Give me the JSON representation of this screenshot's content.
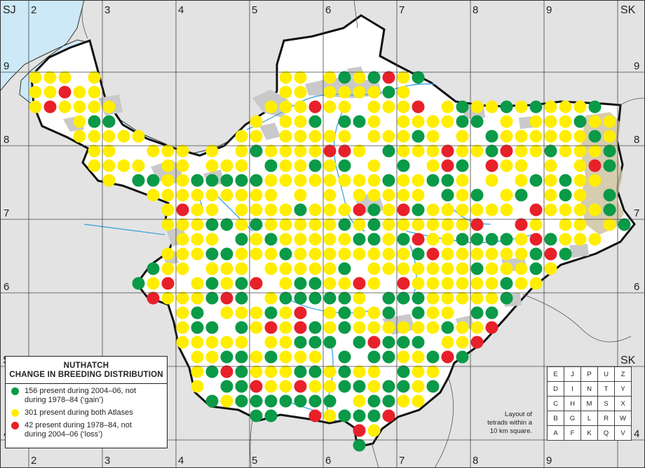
{
  "corners": {
    "top_left": "SJ",
    "top_right": "SK",
    "bottom_left": "SJ",
    "bottom_right": "SK"
  },
  "easting_labels": [
    "2",
    "3",
    "4",
    "5",
    "6",
    "7",
    "8",
    "9"
  ],
  "northing_labels": [
    "9",
    "8",
    "7",
    "6",
    "5",
    "4"
  ],
  "legend": {
    "title_line1": "NUTHATCH",
    "title_line2": "CHANGE IN BREEDING DISTRIBUTION",
    "items": [
      {
        "line1": "156 present during 2004–06, not",
        "line2": "during 1978–84 (‘gain’)",
        "color": "#0a9a48"
      },
      {
        "line1": "301 present during both Atlases",
        "line2": "",
        "color": "#ffee00"
      },
      {
        "line1": "42 present during 1978–84, not",
        "line2": "during 2004–06 (‘loss’)",
        "color": "#e8202a"
      }
    ]
  },
  "tetrad_caption": {
    "line1": "Layout of",
    "line2": "tetrads within a",
    "line3": "10 km square."
  },
  "tetrad_rows": [
    [
      "E",
      "J",
      "P",
      "U",
      "Z"
    ],
    [
      "D",
      "I",
      "N",
      "T",
      "Y"
    ],
    [
      "C",
      "H",
      "M",
      "S",
      "X"
    ],
    [
      "B",
      "G",
      "L",
      "R",
      "W"
    ],
    [
      "A",
      "F",
      "K",
      "Q",
      "V"
    ]
  ],
  "colors": {
    "sea": "#cde9f8",
    "land_outside": "#e3e3e3",
    "county": "#ffffff",
    "urban": "#c9c9c9",
    "upland": "#cfc3a1",
    "river": "#3ba4dd",
    "gain": "#0a9a48",
    "both": "#ffee00",
    "loss": "#e8202a"
  }
}
